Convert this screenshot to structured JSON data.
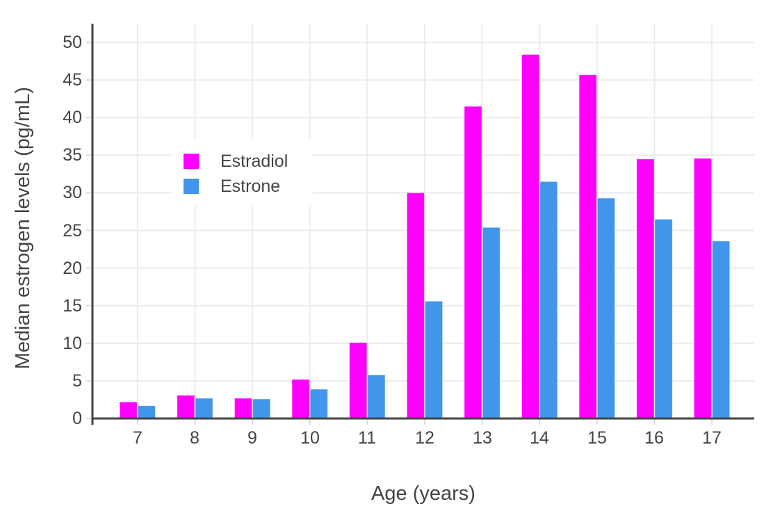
{
  "chart_data": {
    "type": "bar",
    "title": "",
    "xlabel": "Age (years)",
    "ylabel": "Median estrogen levels (pg/mL)",
    "categories": [
      "7",
      "8",
      "9",
      "10",
      "11",
      "12",
      "13",
      "14",
      "15",
      "16",
      "17"
    ],
    "series": [
      {
        "name": "Estradiol",
        "color": "#FF00FF",
        "values": [
          2.2,
          3.1,
          2.7,
          5.2,
          10.1,
          30.0,
          41.5,
          48.4,
          45.7,
          34.5,
          34.6
        ]
      },
      {
        "name": "Estrone",
        "color": "#4196EB",
        "values": [
          1.7,
          2.7,
          2.6,
          3.9,
          5.8,
          15.6,
          25.4,
          31.5,
          29.3,
          26.5,
          23.6
        ]
      }
    ],
    "ylim": [
      0,
      52.5
    ],
    "yticks": [
      0,
      5,
      10,
      15,
      20,
      25,
      30,
      35,
      40,
      45,
      50
    ],
    "grid": true,
    "legend_position": "inside-top-left"
  },
  "colors": {
    "background": "#FFFFFF",
    "text": "#444444",
    "axis_line": "#444444",
    "gridline": "#EBEBEB",
    "tick_mark": "#DCDCDC"
  }
}
